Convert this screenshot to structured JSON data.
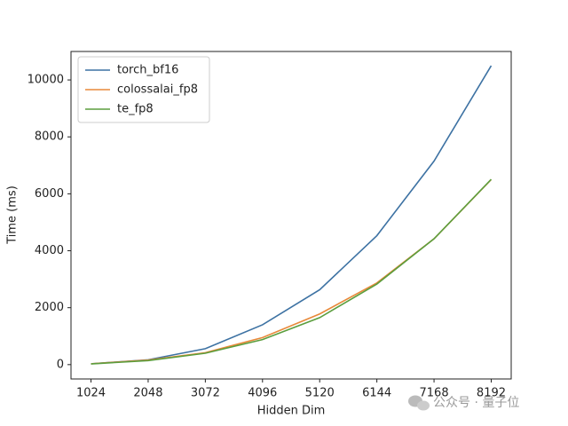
{
  "chart_data": {
    "type": "line",
    "x": [
      1024,
      2048,
      3072,
      4096,
      5120,
      6144,
      7168,
      8192
    ],
    "series": [
      {
        "name": "torch_bf16",
        "color": "#3d72a3",
        "values": [
          30,
          170,
          560,
          1400,
          2630,
          4530,
          7150,
          10500
        ]
      },
      {
        "name": "colossalai_fp8",
        "color": "#e8893a",
        "values": [
          30,
          160,
          420,
          950,
          1780,
          2870,
          4420,
          6500
        ]
      },
      {
        "name": "te_fp8",
        "color": "#5b9e3e",
        "values": [
          25,
          140,
          400,
          880,
          1650,
          2830,
          4420,
          6510
        ]
      }
    ],
    "xlabel": "Hidden Dim",
    "ylabel": "Time (ms)",
    "xlim": [
      666,
      8550
    ],
    "ylim": [
      -504,
      11000
    ],
    "xticks": [
      1024,
      2048,
      3072,
      4096,
      5120,
      6144,
      7168,
      8192
    ],
    "yticks": [
      0,
      2000,
      4000,
      6000,
      8000,
      10000
    ],
    "legend": "upper-left",
    "watermark": "公众号 · 量子位"
  }
}
